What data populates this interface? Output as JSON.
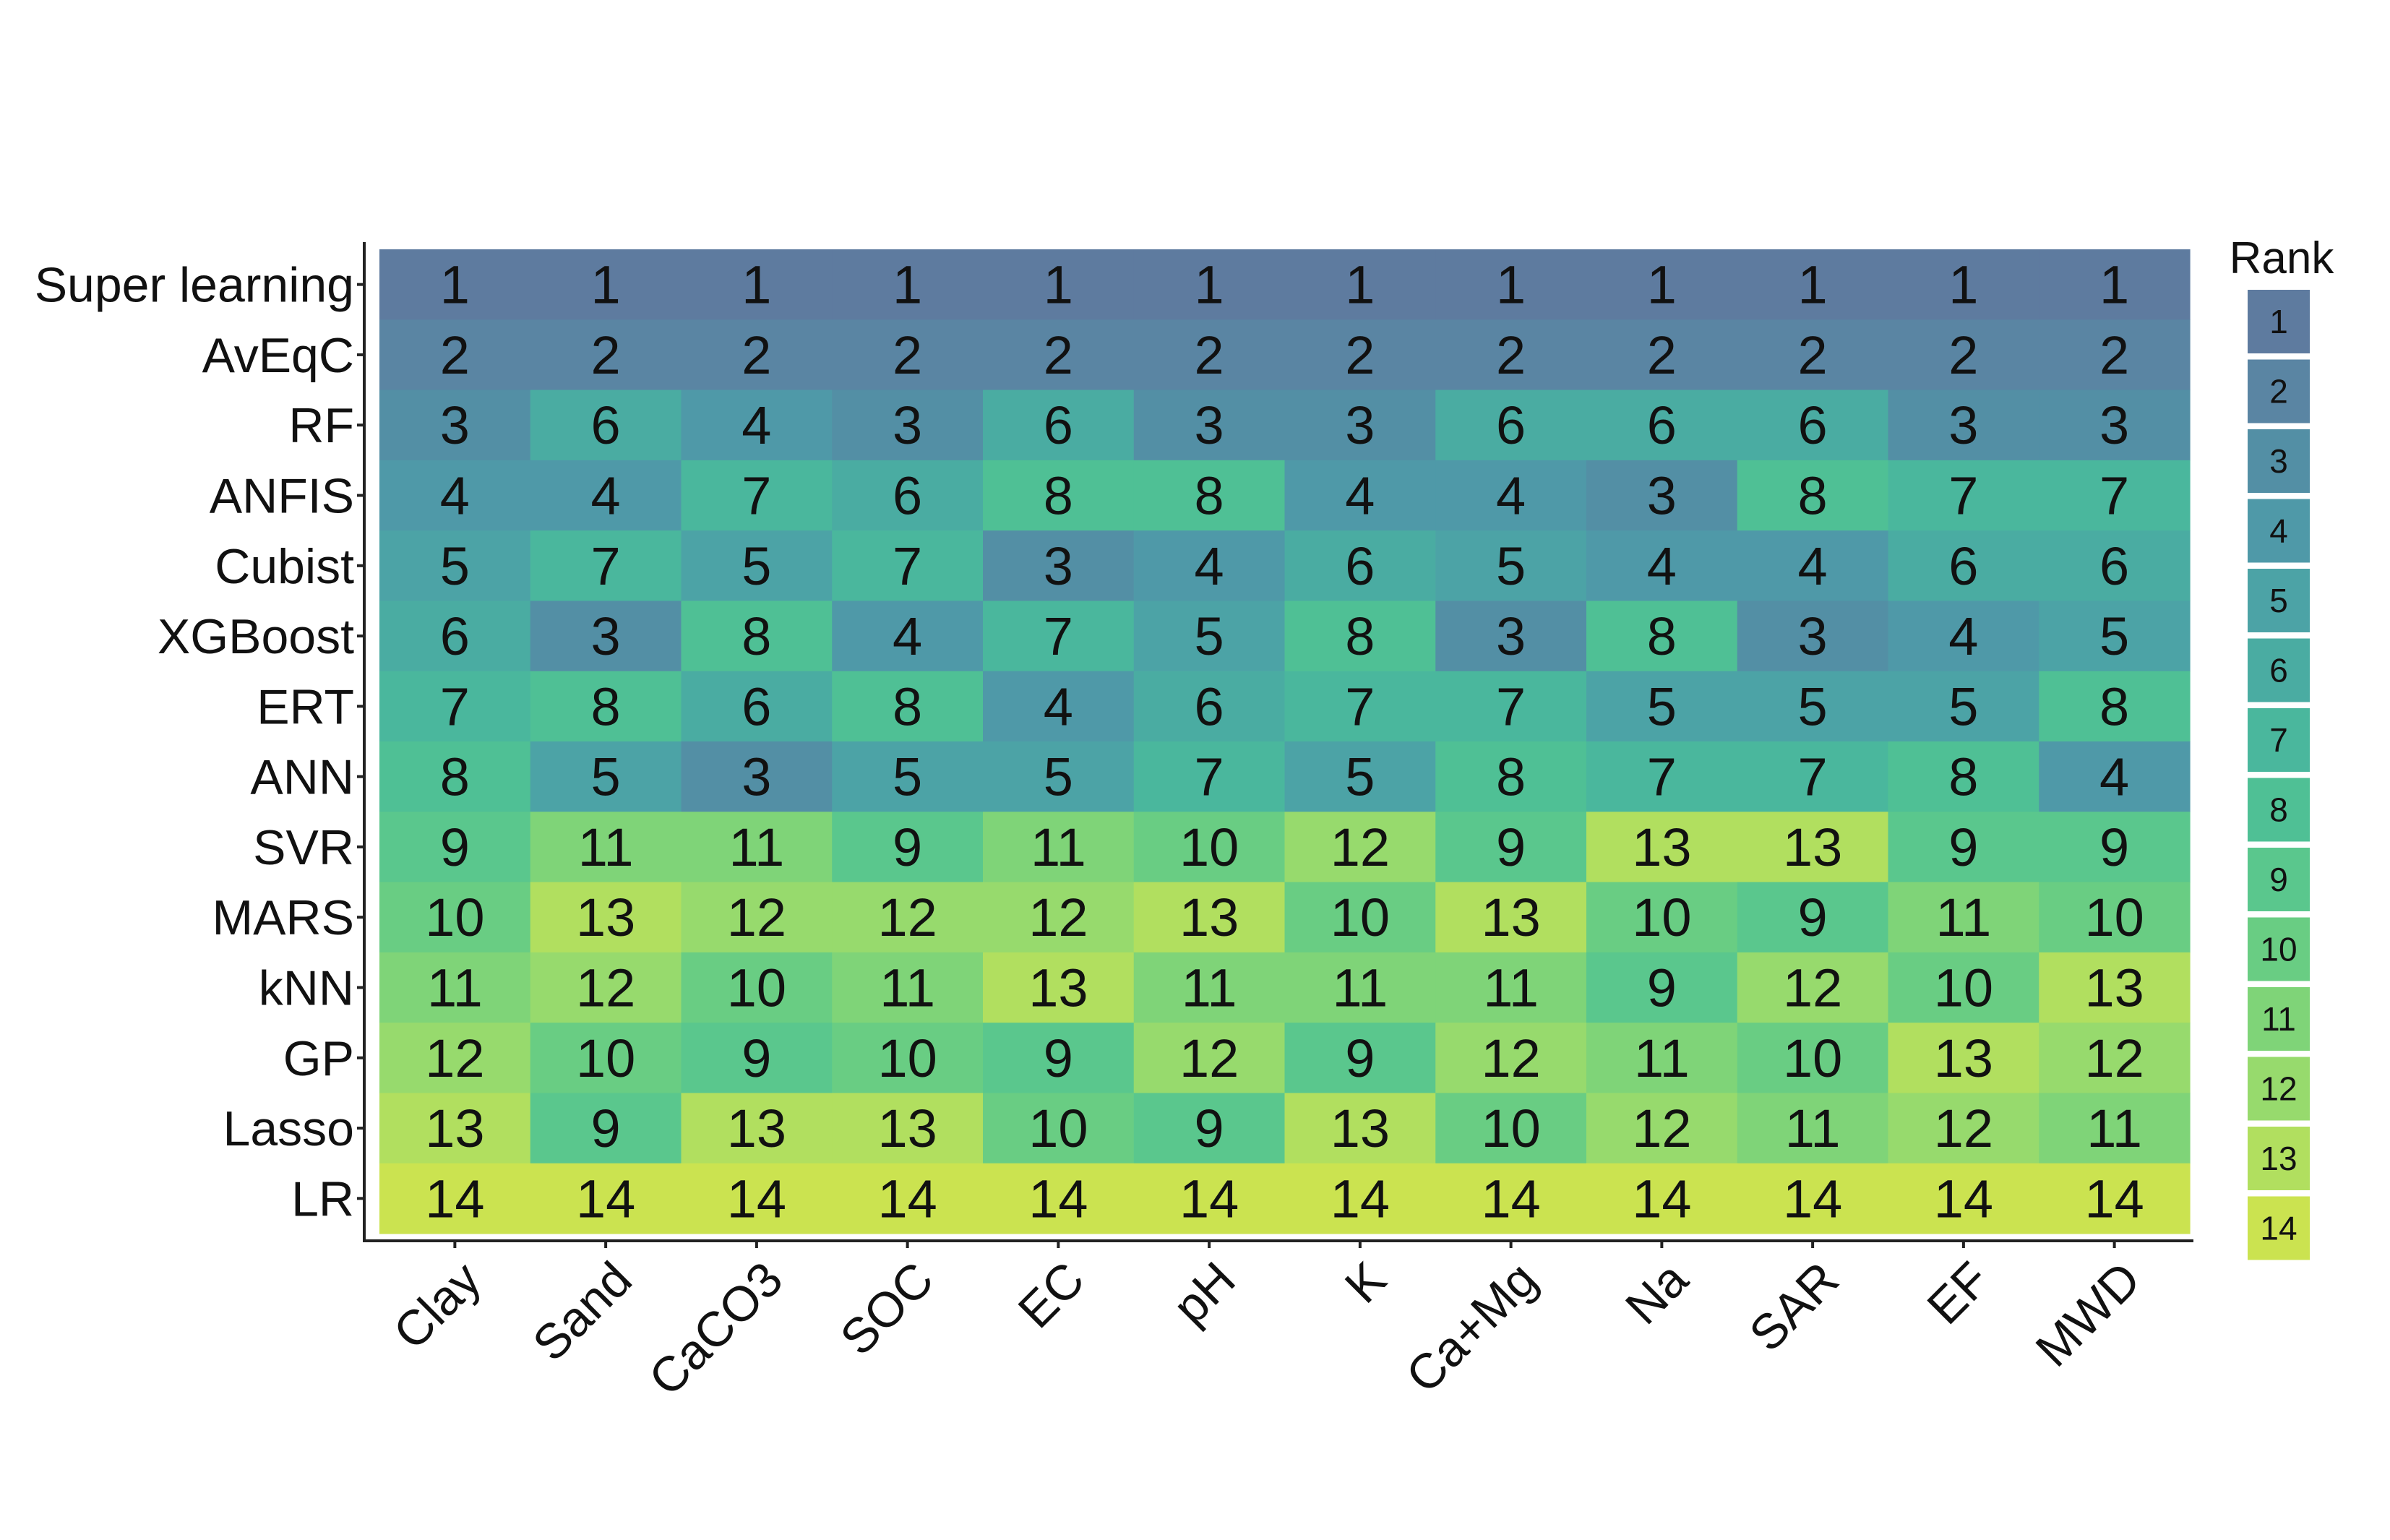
{
  "chart_data": {
    "type": "heatmap",
    "title": "",
    "xlabel": "",
    "ylabel": "",
    "x_categories": [
      "Clay",
      "Sand",
      "CaCO3",
      "SOC",
      "EC",
      "pH",
      "K",
      "Ca+Mg",
      "Na",
      "SAR",
      "EF",
      "MWD"
    ],
    "y_categories": [
      "Super learning",
      "AvEqC",
      "RF",
      "ANFIS",
      "Cubist",
      "XGBoost",
      "ERT",
      "ANN",
      "SVR",
      "MARS",
      "kNN",
      "GP",
      "Lasso",
      "LR"
    ],
    "values": [
      [
        1,
        1,
        1,
        1,
        1,
        1,
        1,
        1,
        1,
        1,
        1,
        1
      ],
      [
        2,
        2,
        2,
        2,
        2,
        2,
        2,
        2,
        2,
        2,
        2,
        2
      ],
      [
        3,
        6,
        4,
        3,
        6,
        3,
        3,
        6,
        6,
        6,
        3,
        3
      ],
      [
        4,
        4,
        7,
        6,
        8,
        8,
        4,
        4,
        3,
        8,
        7,
        7
      ],
      [
        5,
        7,
        5,
        7,
        3,
        4,
        6,
        5,
        4,
        4,
        6,
        6
      ],
      [
        6,
        3,
        8,
        4,
        7,
        5,
        8,
        3,
        8,
        3,
        4,
        5
      ],
      [
        7,
        8,
        6,
        8,
        4,
        6,
        7,
        7,
        5,
        5,
        5,
        8
      ],
      [
        8,
        5,
        3,
        5,
        5,
        7,
        5,
        8,
        7,
        7,
        8,
        4
      ],
      [
        9,
        11,
        11,
        9,
        11,
        10,
        12,
        9,
        13,
        13,
        9,
        9
      ],
      [
        10,
        13,
        12,
        12,
        12,
        13,
        10,
        13,
        10,
        9,
        11,
        10
      ],
      [
        11,
        12,
        10,
        11,
        13,
        11,
        11,
        11,
        9,
        12,
        10,
        13
      ],
      [
        12,
        10,
        9,
        10,
        9,
        12,
        9,
        12,
        11,
        10,
        13,
        12
      ],
      [
        13,
        9,
        13,
        13,
        10,
        9,
        13,
        10,
        12,
        11,
        12,
        11
      ],
      [
        14,
        14,
        14,
        14,
        14,
        14,
        14,
        14,
        14,
        14,
        14,
        14
      ]
    ],
    "legend": {
      "title": "Rank",
      "placement": "right",
      "levels": [
        1,
        2,
        3,
        4,
        5,
        6,
        7,
        8,
        9,
        10,
        11,
        12,
        13,
        14
      ]
    },
    "colors": {
      "rank_1": "#5e7b9f",
      "rank_2": "#5a85a3",
      "rank_3": "#538fa5",
      "rank_4": "#4f99a8",
      "rank_5": "#4ca3a6",
      "rank_6": "#4aaca2",
      "rank_7": "#4ab79d",
      "rank_8": "#4fc095",
      "rank_9": "#5ac78d",
      "rank_10": "#69cd83",
      "rank_11": "#7fd478",
      "rank_12": "#97da6d",
      "rank_13": "#b1df5f",
      "rank_14": "#cbe350"
    },
    "grid": false
  }
}
